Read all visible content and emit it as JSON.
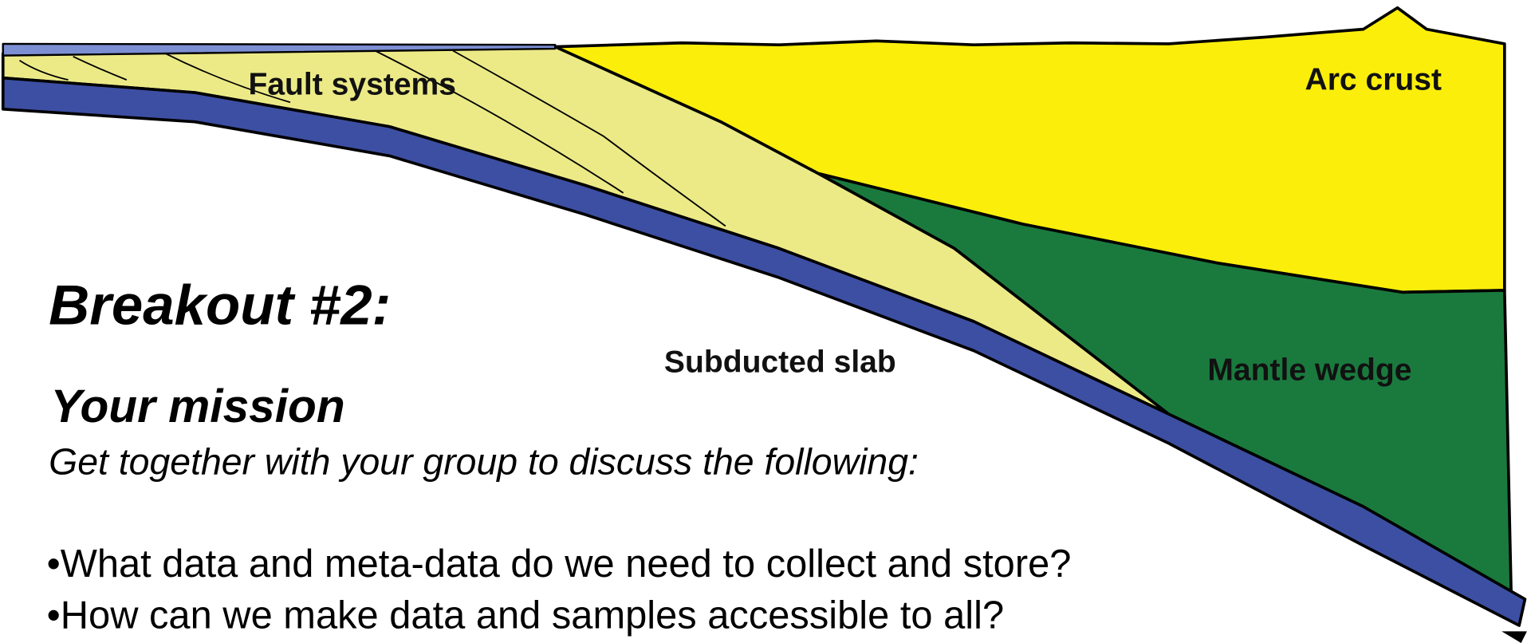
{
  "diagram": {
    "labels": {
      "fault_systems": "Fault systems",
      "arc_crust": "Arc crust",
      "subducted_slab": "Subducted slab",
      "mantle_wedge": "Mantle wedge"
    }
  },
  "slide": {
    "title": "Breakout #2:",
    "subtitle": "Your mission",
    "instruction": "Get together with your group to discuss the following:",
    "bullets": [
      "•What data and meta-data do we need to collect and store?",
      "•How can we make data and samples accessible to all?"
    ]
  }
}
